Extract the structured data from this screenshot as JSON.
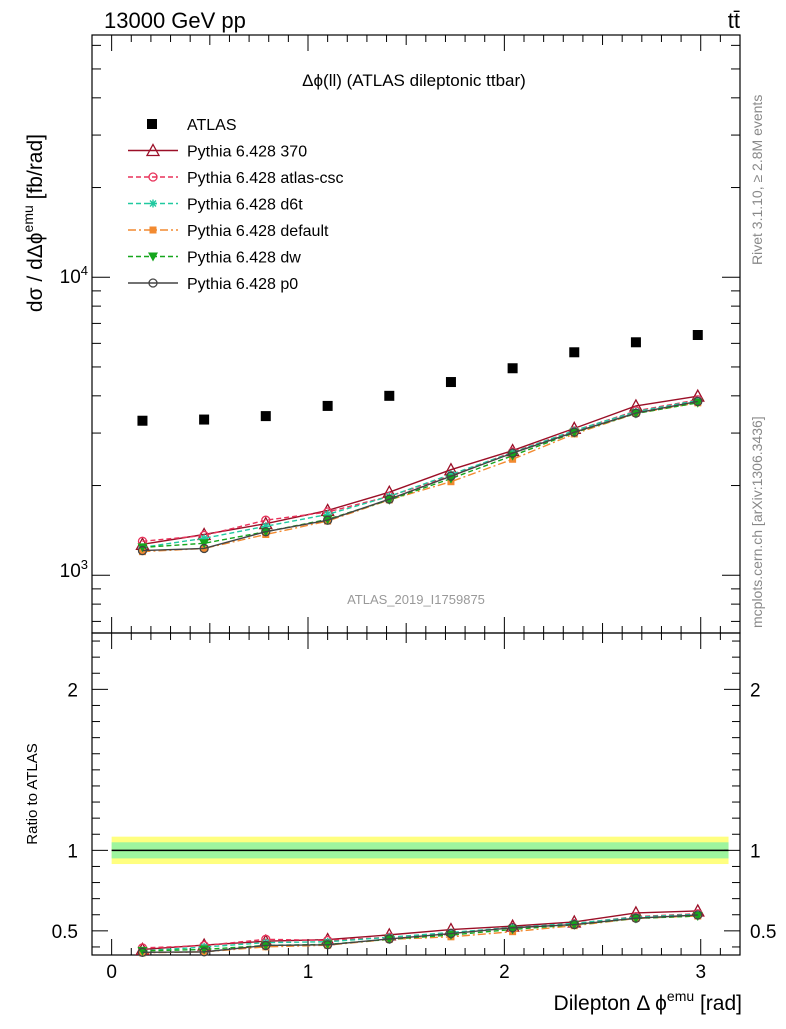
{
  "header": {
    "energy_label": "13000 GeV pp",
    "process_label": "tt̄",
    "plot_title": "Δϕ(ll) (ATLAS dileptonic ttbar)",
    "watermark": "ATLAS_2019_I1759875",
    "side_text_rivet": "Rivet 3.1.10, ≥ 2.8M events",
    "side_text_source": "mcplots.cern.ch [arXiv:1306.3436]"
  },
  "axes": {
    "main_ylabel": "dσ / dΔϕ^emu [fb/rad]",
    "ratio_ylabel": "Ratio to ATLAS",
    "xlabel": "Dilepton Δ ϕ^emu [rad]",
    "x_ticks": [
      "0",
      "1",
      "2",
      "3"
    ],
    "main_y_ticks": [
      "10^3",
      "10^4"
    ],
    "ratio_y_ticks": [
      "0.5",
      "1",
      "2"
    ]
  },
  "colors": {
    "atlas": "#000000",
    "p370": "#9b0f27",
    "atlas_csc": "#e8325a",
    "d6t": "#20c9a0",
    "default": "#f28a30",
    "dw": "#16a61d",
    "p0": "#444444",
    "band_inner": "#9ef59e",
    "band_outer": "#ffff80"
  },
  "chart_data": {
    "type": "scatter",
    "x": [
      0.157,
      0.471,
      0.785,
      1.1,
      1.414,
      1.728,
      2.042,
      2.356,
      2.67,
      2.985
    ],
    "xlim": [
      -0.1,
      3.2
    ],
    "main_ylim": [
      640,
      65000
    ],
    "main_yscale": "log",
    "ratio_ylim": [
      0.35,
      2.35
    ],
    "legend_position": "top-left",
    "series": [
      {
        "name": "ATLAS",
        "key": "atlas",
        "marker": "square",
        "values": [
          3300,
          3330,
          3420,
          3700,
          4000,
          4450,
          4950,
          5600,
          6050,
          6400
        ]
      },
      {
        "name": "Pythia 6.428 370",
        "key": "p370",
        "marker": "triangle",
        "dash": "",
        "values": [
          1270,
          1370,
          1490,
          1650,
          1900,
          2260,
          2620,
          3110,
          3700,
          3990
        ]
      },
      {
        "name": "Pythia 6.428 atlas-csc",
        "key": "atlas_csc",
        "marker": "circle",
        "dash": "5,3",
        "values": [
          1300,
          1360,
          1530,
          1630,
          1840,
          2160,
          2590,
          3050,
          3560,
          3880
        ]
      },
      {
        "name": "Pythia 6.428 d6t",
        "key": "d6t",
        "marker": "star",
        "dash": "5,3",
        "values": [
          1240,
          1330,
          1460,
          1600,
          1840,
          2180,
          2580,
          3060,
          3540,
          3860
        ]
      },
      {
        "name": "Pythia 6.428 default",
        "key": "default",
        "marker": "square",
        "dash": "8,3,2,3",
        "values": [
          1200,
          1230,
          1370,
          1520,
          1790,
          2060,
          2450,
          2980,
          3490,
          3790
        ]
      },
      {
        "name": "Pythia 6.428 dw",
        "key": "dw",
        "marker": "triangle-down",
        "dash": "5,3",
        "values": [
          1240,
          1280,
          1400,
          1540,
          1790,
          2110,
          2520,
          3010,
          3490,
          3790
        ]
      },
      {
        "name": "Pythia 6.428 p0",
        "key": "p0",
        "marker": "circle",
        "dash": "",
        "values": [
          1210,
          1230,
          1400,
          1530,
          1800,
          2150,
          2570,
          3020,
          3500,
          3830
        ]
      }
    ],
    "ratio_band": {
      "inner": 0.05,
      "outer": 0.085
    }
  }
}
